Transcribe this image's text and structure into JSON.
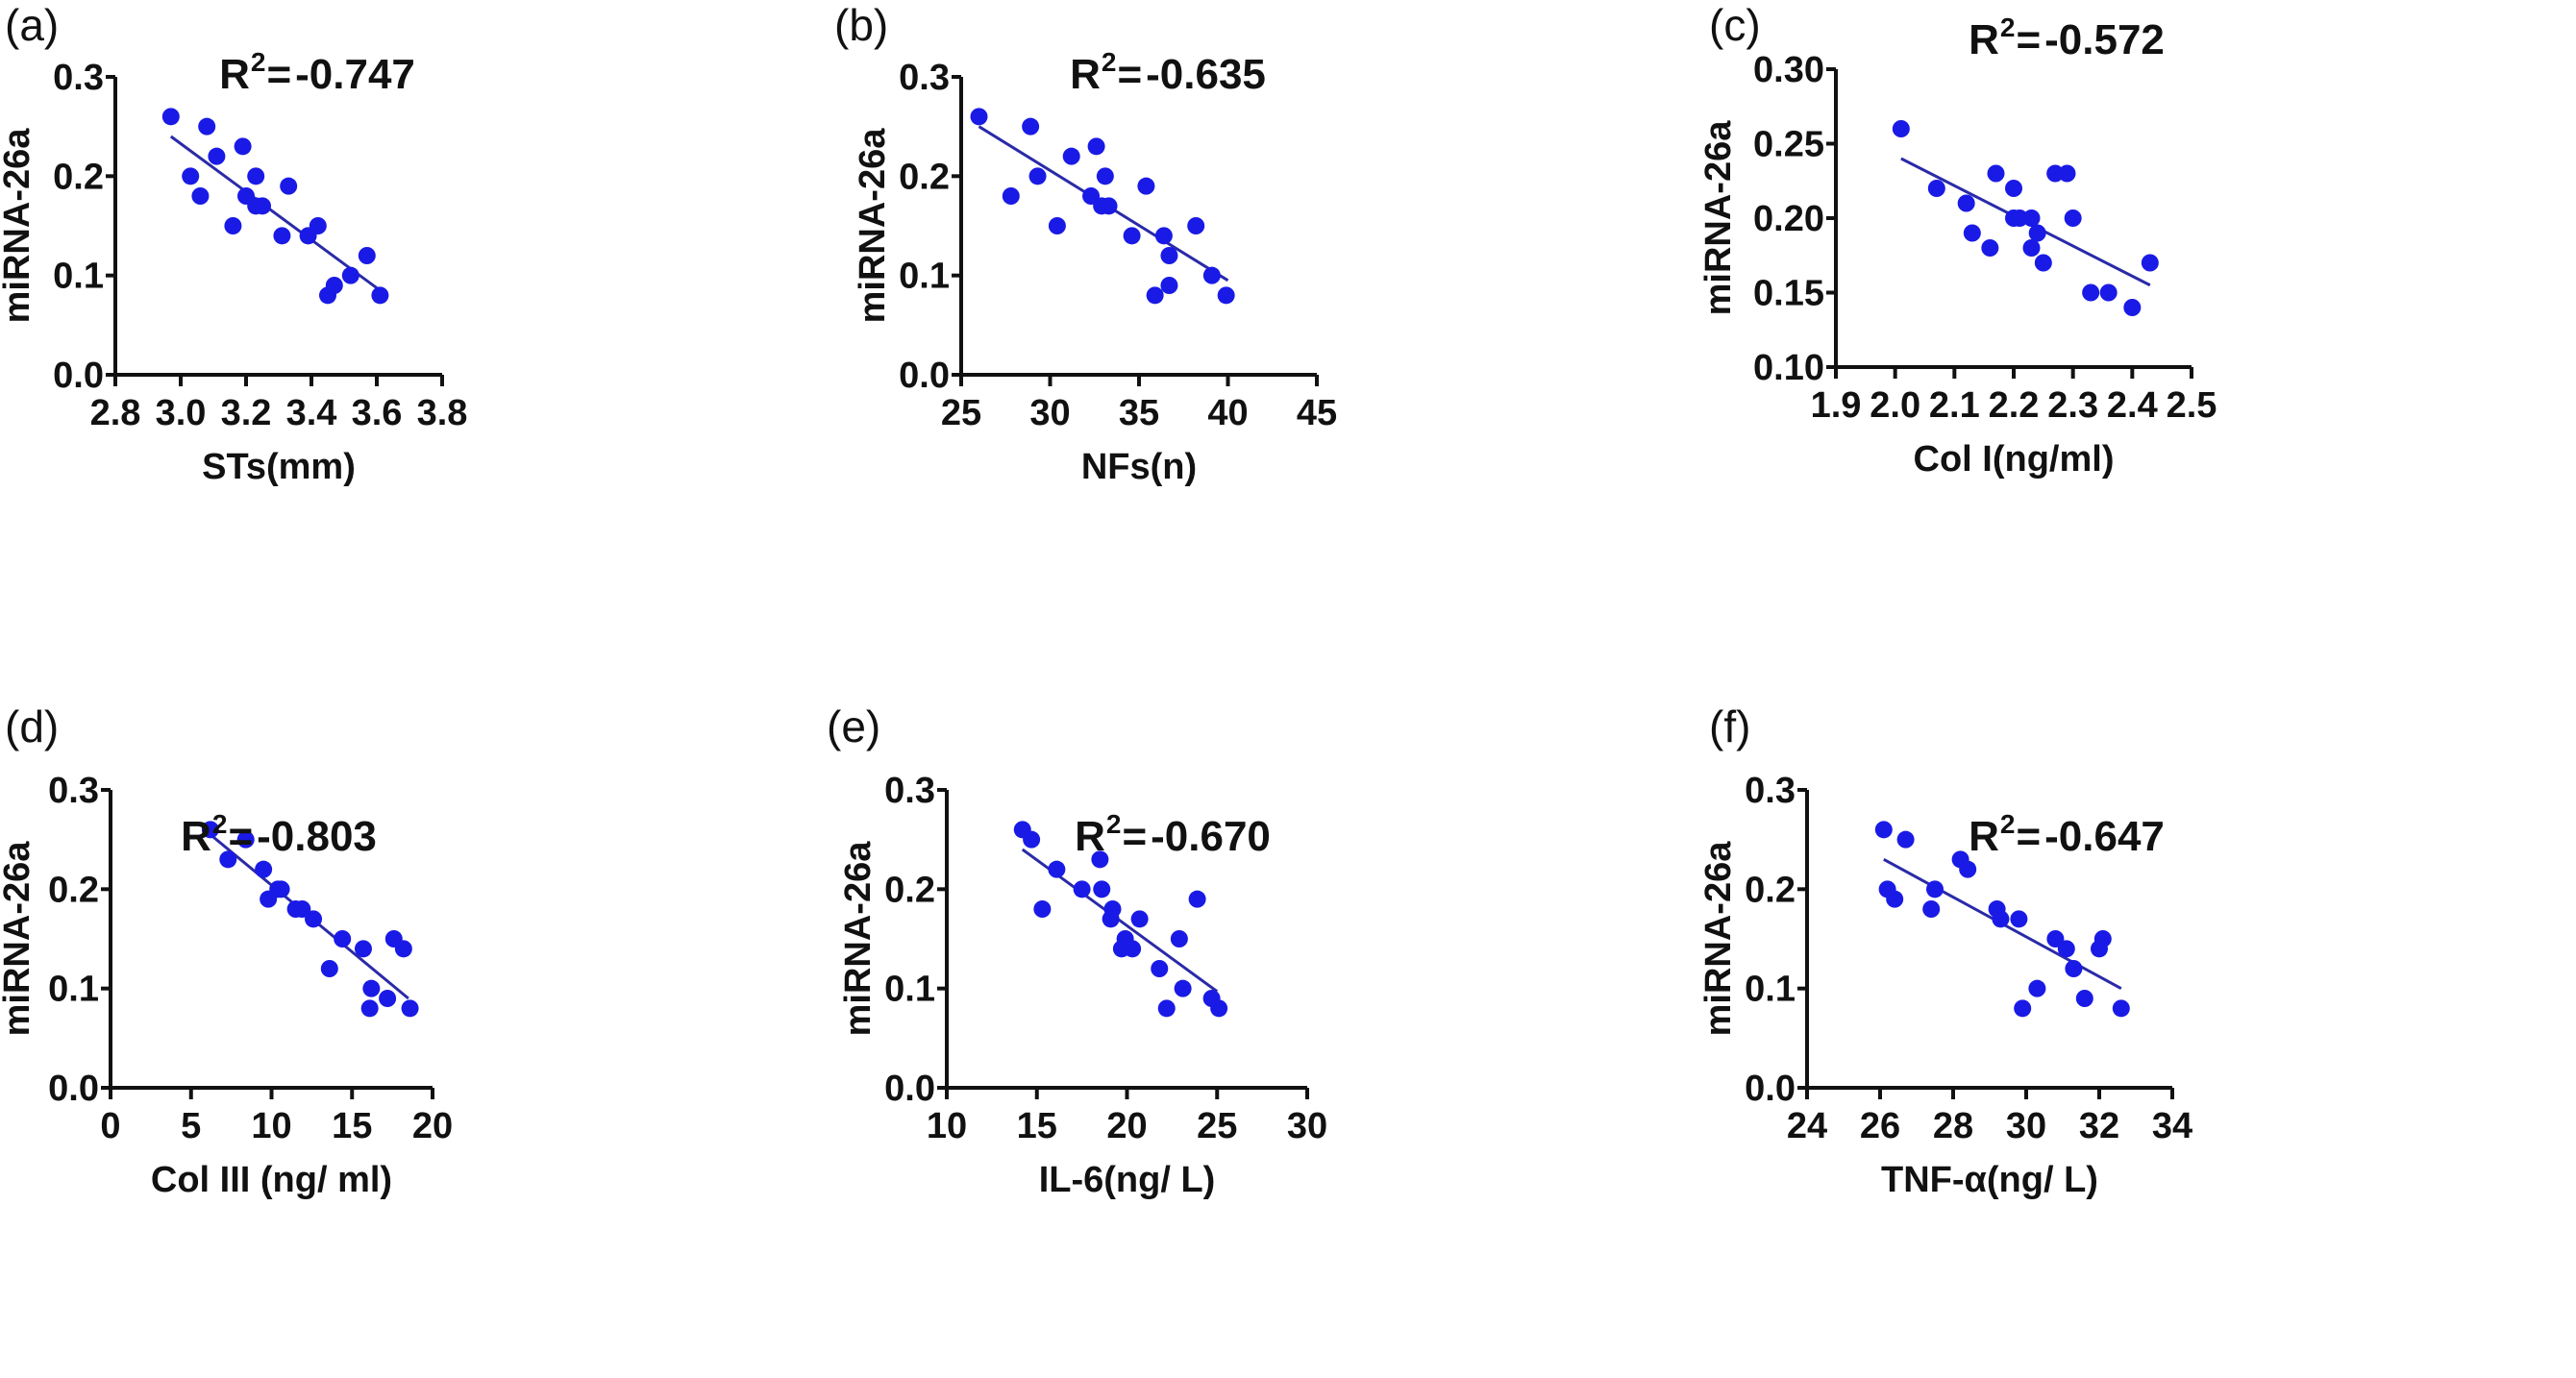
{
  "style": {
    "point_color": "#1a1ae6",
    "line_color": "#2a2aa8",
    "axis_color": "#111111"
  },
  "chart_data": [
    {
      "panel": "(a)",
      "type": "scatter",
      "ylabel": "miRNA-26a",
      "xlabel": "STs(mm)",
      "annotation": "-0.747",
      "annotation_prefix": "R",
      "annotation_sup": "2",
      "annotation_eq": "= ",
      "xlim": [
        2.8,
        3.8
      ],
      "ylim": [
        0,
        0.3
      ],
      "xticks": [
        "2.8",
        "3.0",
        "3.2",
        "3.4",
        "3.6",
        "3.8"
      ],
      "yticks": [
        "0.0",
        "0.1",
        "0.2",
        "0.3"
      ],
      "points": [
        [
          2.97,
          0.26
        ],
        [
          3.08,
          0.25
        ],
        [
          3.19,
          0.23
        ],
        [
          3.11,
          0.22
        ],
        [
          3.03,
          0.2
        ],
        [
          3.23,
          0.2
        ],
        [
          3.33,
          0.19
        ],
        [
          3.06,
          0.18
        ],
        [
          3.2,
          0.18
        ],
        [
          3.23,
          0.17
        ],
        [
          3.25,
          0.17
        ],
        [
          3.16,
          0.15
        ],
        [
          3.42,
          0.15
        ],
        [
          3.31,
          0.14
        ],
        [
          3.39,
          0.14
        ],
        [
          3.57,
          0.12
        ],
        [
          3.52,
          0.1
        ],
        [
          3.47,
          0.09
        ],
        [
          3.45,
          0.08
        ],
        [
          3.61,
          0.08
        ]
      ],
      "fit_line": [
        [
          2.97,
          0.24
        ],
        [
          3.61,
          0.085
        ]
      ]
    },
    {
      "panel": "(b)",
      "type": "scatter",
      "ylabel": "miRNA-26a",
      "xlabel": "NFs(n)",
      "annotation": "-0.635",
      "annotation_prefix": "R",
      "annotation_sup": "2",
      "annotation_eq": "= ",
      "xlim": [
        25,
        45
      ],
      "ylim": [
        0,
        0.3
      ],
      "xticks": [
        "25",
        "30",
        "35",
        "40",
        "45"
      ],
      "yticks": [
        "0.0",
        "0.1",
        "0.2",
        "0.3"
      ],
      "points": [
        [
          26,
          0.26
        ],
        [
          28.9,
          0.25
        ],
        [
          32.6,
          0.23
        ],
        [
          31.2,
          0.22
        ],
        [
          29.3,
          0.2
        ],
        [
          33.1,
          0.2
        ],
        [
          35.4,
          0.19
        ],
        [
          27.8,
          0.18
        ],
        [
          32.3,
          0.18
        ],
        [
          32.9,
          0.17
        ],
        [
          33.3,
          0.17
        ],
        [
          30.4,
          0.15
        ],
        [
          38.2,
          0.15
        ],
        [
          34.6,
          0.14
        ],
        [
          36.4,
          0.14
        ],
        [
          36.7,
          0.12
        ],
        [
          39.1,
          0.1
        ],
        [
          36.7,
          0.09
        ],
        [
          35.9,
          0.08
        ],
        [
          39.9,
          0.08
        ]
      ],
      "fit_line": [
        [
          26,
          0.25
        ],
        [
          40,
          0.095
        ]
      ]
    },
    {
      "panel": "(c)",
      "type": "scatter",
      "ylabel": "miRNA-26a",
      "xlabel": "Col I(ng/ml)",
      "annotation": "-0.572",
      "annotation_prefix": "R",
      "annotation_sup": "2",
      "annotation_eq": "= ",
      "xlim": [
        1.9,
        2.5
      ],
      "ylim": [
        0.1,
        0.3
      ],
      "xticks": [
        "1.9",
        "2.0",
        "2.1",
        "2.2",
        "2.3",
        "2.4",
        "2.5"
      ],
      "yticks": [
        "0.10",
        "0.15",
        "0.20",
        "0.25",
        "0.30"
      ],
      "points": [
        [
          2.01,
          0.26
        ],
        [
          2.07,
          0.22
        ],
        [
          2.17,
          0.23
        ],
        [
          2.27,
          0.23
        ],
        [
          2.29,
          0.23
        ],
        [
          2.2,
          0.22
        ],
        [
          2.12,
          0.21
        ],
        [
          2.2,
          0.2
        ],
        [
          2.21,
          0.2
        ],
        [
          2.23,
          0.2
        ],
        [
          2.3,
          0.2
        ],
        [
          2.13,
          0.19
        ],
        [
          2.24,
          0.19
        ],
        [
          2.16,
          0.18
        ],
        [
          2.23,
          0.18
        ],
        [
          2.25,
          0.17
        ],
        [
          2.43,
          0.17
        ],
        [
          2.33,
          0.15
        ],
        [
          2.36,
          0.15
        ],
        [
          2.4,
          0.14
        ]
      ],
      "fit_line": [
        [
          2.01,
          0.24
        ],
        [
          2.43,
          0.155
        ]
      ]
    },
    {
      "panel": "(d)",
      "type": "scatter",
      "ylabel": "miRNA-26a",
      "xlabel": "Col III (ng/ ml)",
      "annotation": "-0.803",
      "annotation_prefix": "R",
      "annotation_sup": "2",
      "annotation_eq": "= ",
      "xlim": [
        0,
        20
      ],
      "ylim": [
        0,
        0.3
      ],
      "xticks": [
        "0",
        "5",
        "10",
        "15",
        "20"
      ],
      "yticks": [
        "0.0",
        "0.1",
        "0.2",
        "0.3"
      ],
      "points": [
        [
          6.2,
          0.26
        ],
        [
          8.4,
          0.25
        ],
        [
          7.3,
          0.23
        ],
        [
          9.5,
          0.22
        ],
        [
          10.4,
          0.2
        ],
        [
          10.6,
          0.2
        ],
        [
          9.8,
          0.19
        ],
        [
          11.5,
          0.18
        ],
        [
          11.9,
          0.18
        ],
        [
          12.6,
          0.17
        ],
        [
          14.4,
          0.15
        ],
        [
          17.6,
          0.15
        ],
        [
          15.7,
          0.14
        ],
        [
          18.2,
          0.14
        ],
        [
          13.6,
          0.12
        ],
        [
          16.2,
          0.1
        ],
        [
          17.2,
          0.09
        ],
        [
          16.1,
          0.08
        ],
        [
          18.6,
          0.08
        ]
      ],
      "fit_line": [
        [
          6.2,
          0.255
        ],
        [
          18.5,
          0.09
        ]
      ]
    },
    {
      "panel": "(e)",
      "type": "scatter",
      "ylabel": "miRNA-26a",
      "xlabel": "IL-6(ng/ L)",
      "annotation": "-0.670",
      "annotation_prefix": "R",
      "annotation_sup": "2",
      "annotation_eq": "= ",
      "xlim": [
        10,
        30
      ],
      "ylim": [
        0,
        0.3
      ],
      "xticks": [
        "10",
        "15",
        "20",
        "25",
        "30"
      ],
      "yticks": [
        "0.0",
        "0.1",
        "0.2",
        "0.3"
      ],
      "points": [
        [
          14.2,
          0.26
        ],
        [
          14.7,
          0.25
        ],
        [
          18.5,
          0.23
        ],
        [
          16.1,
          0.22
        ],
        [
          17.5,
          0.2
        ],
        [
          18.6,
          0.2
        ],
        [
          23.9,
          0.19
        ],
        [
          15.3,
          0.18
        ],
        [
          19.2,
          0.18
        ],
        [
          19.1,
          0.17
        ],
        [
          20.7,
          0.17
        ],
        [
          19.9,
          0.15
        ],
        [
          22.9,
          0.15
        ],
        [
          19.7,
          0.14
        ],
        [
          20.3,
          0.14
        ],
        [
          21.8,
          0.12
        ],
        [
          23.1,
          0.1
        ],
        [
          24.7,
          0.09
        ],
        [
          22.2,
          0.08
        ],
        [
          25.1,
          0.08
        ]
      ],
      "fit_line": [
        [
          14.2,
          0.24
        ],
        [
          25,
          0.097
        ]
      ]
    },
    {
      "panel": "(f)",
      "type": "scatter",
      "ylabel": "miRNA-26a",
      "xlabel": "TNF-α(ng/ L)",
      "annotation": "-0.647",
      "annotation_prefix": "R",
      "annotation_sup": "2",
      "annotation_eq": "= ",
      "xlim": [
        24,
        34
      ],
      "ylim": [
        0,
        0.3
      ],
      "xticks": [
        "24",
        "26",
        "28",
        "30",
        "32",
        "34"
      ],
      "yticks": [
        "0.0",
        "0.1",
        "0.2",
        "0.3"
      ],
      "points": [
        [
          26.1,
          0.26
        ],
        [
          26.7,
          0.25
        ],
        [
          28.2,
          0.23
        ],
        [
          28.4,
          0.22
        ],
        [
          26.2,
          0.2
        ],
        [
          27.5,
          0.2
        ],
        [
          26.4,
          0.19
        ],
        [
          27.4,
          0.18
        ],
        [
          29.2,
          0.18
        ],
        [
          29.3,
          0.17
        ],
        [
          29.8,
          0.17
        ],
        [
          30.8,
          0.15
        ],
        [
          32.1,
          0.15
        ],
        [
          31.1,
          0.14
        ],
        [
          32,
          0.14
        ],
        [
          31.3,
          0.12
        ],
        [
          30.3,
          0.1
        ],
        [
          31.6,
          0.09
        ],
        [
          29.9,
          0.08
        ],
        [
          32.6,
          0.08
        ]
      ],
      "fit_line": [
        [
          26.1,
          0.23
        ],
        [
          32.6,
          0.1
        ]
      ]
    }
  ]
}
